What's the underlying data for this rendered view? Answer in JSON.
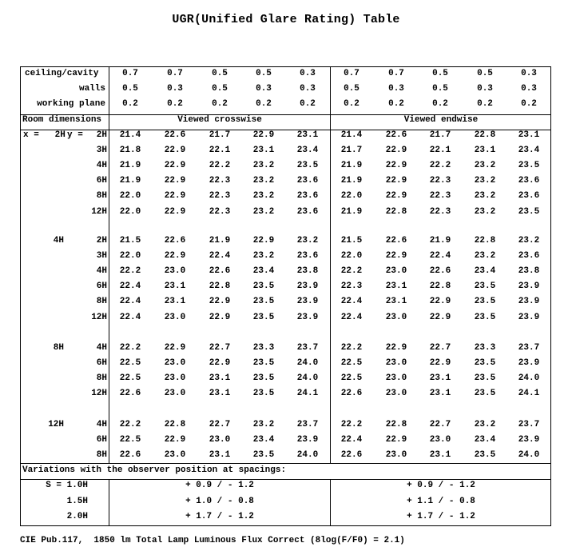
{
  "title": "UGR(Unified Glare Rating) Table",
  "reflectances": {
    "ceiling_label": "ceiling/cavity",
    "walls_label": "walls",
    "plane_label": "working plane",
    "ceiling": [
      "0.7",
      "0.7",
      "0.5",
      "0.5",
      "0.3",
      "0.7",
      "0.7",
      "0.5",
      "0.5",
      "0.3"
    ],
    "walls": [
      "0.5",
      "0.3",
      "0.5",
      "0.3",
      "0.3",
      "0.5",
      "0.3",
      "0.5",
      "0.3",
      "0.3"
    ],
    "plane": [
      "0.2",
      "0.2",
      "0.2",
      "0.2",
      "0.2",
      "0.2",
      "0.2",
      "0.2",
      "0.2",
      "0.2"
    ]
  },
  "header": {
    "room_dimensions": "Room dimensions",
    "crosswise": "Viewed crosswise",
    "endwise": "Viewed endwise"
  },
  "groups": [
    {
      "x_label": "x =   2H",
      "y_prefix": "y =",
      "rows": [
        {
          "y": "2H",
          "values": [
            "21.4",
            "22.6",
            "21.7",
            "22.9",
            "23.1",
            "21.4",
            "22.6",
            "21.7",
            "22.8",
            "23.1"
          ]
        },
        {
          "y": "3H",
          "values": [
            "21.8",
            "22.9",
            "22.1",
            "23.1",
            "23.4",
            "21.7",
            "22.9",
            "22.1",
            "23.1",
            "23.4"
          ]
        },
        {
          "y": "4H",
          "values": [
            "21.9",
            "22.9",
            "22.2",
            "23.2",
            "23.5",
            "21.9",
            "22.9",
            "22.2",
            "23.2",
            "23.5"
          ]
        },
        {
          "y": "6H",
          "values": [
            "21.9",
            "22.9",
            "22.3",
            "23.2",
            "23.6",
            "21.9",
            "22.9",
            "22.3",
            "23.2",
            "23.6"
          ]
        },
        {
          "y": "8H",
          "values": [
            "22.0",
            "22.9",
            "22.3",
            "23.2",
            "23.6",
            "22.0",
            "22.9",
            "22.3",
            "23.2",
            "23.6"
          ]
        },
        {
          "y": "12H",
          "values": [
            "22.0",
            "22.9",
            "22.3",
            "23.2",
            "23.6",
            "21.9",
            "22.8",
            "22.3",
            "23.2",
            "23.5"
          ]
        }
      ]
    },
    {
      "x_label": "4H",
      "y_prefix": "",
      "rows": [
        {
          "y": "2H",
          "values": [
            "21.5",
            "22.6",
            "21.9",
            "22.9",
            "23.2",
            "21.5",
            "22.6",
            "21.9",
            "22.8",
            "23.2"
          ]
        },
        {
          "y": "3H",
          "values": [
            "22.0",
            "22.9",
            "22.4",
            "23.2",
            "23.6",
            "22.0",
            "22.9",
            "22.4",
            "23.2",
            "23.6"
          ]
        },
        {
          "y": "4H",
          "values": [
            "22.2",
            "23.0",
            "22.6",
            "23.4",
            "23.8",
            "22.2",
            "23.0",
            "22.6",
            "23.4",
            "23.8"
          ]
        },
        {
          "y": "6H",
          "values": [
            "22.4",
            "23.1",
            "22.8",
            "23.5",
            "23.9",
            "22.3",
            "23.1",
            "22.8",
            "23.5",
            "23.9"
          ]
        },
        {
          "y": "8H",
          "values": [
            "22.4",
            "23.1",
            "22.9",
            "23.5",
            "23.9",
            "22.4",
            "23.1",
            "22.9",
            "23.5",
            "23.9"
          ]
        },
        {
          "y": "12H",
          "values": [
            "22.4",
            "23.0",
            "22.9",
            "23.5",
            "23.9",
            "22.4",
            "23.0",
            "22.9",
            "23.5",
            "23.9"
          ]
        }
      ]
    },
    {
      "x_label": "8H",
      "y_prefix": "",
      "rows": [
        {
          "y": "4H",
          "values": [
            "22.2",
            "22.9",
            "22.7",
            "23.3",
            "23.7",
            "22.2",
            "22.9",
            "22.7",
            "23.3",
            "23.7"
          ]
        },
        {
          "y": "6H",
          "values": [
            "22.5",
            "23.0",
            "22.9",
            "23.5",
            "24.0",
            "22.5",
            "23.0",
            "22.9",
            "23.5",
            "23.9"
          ]
        },
        {
          "y": "8H",
          "values": [
            "22.5",
            "23.0",
            "23.1",
            "23.5",
            "24.0",
            "22.5",
            "23.0",
            "23.1",
            "23.5",
            "24.0"
          ]
        },
        {
          "y": "12H",
          "values": [
            "22.6",
            "23.0",
            "23.1",
            "23.5",
            "24.1",
            "22.6",
            "23.0",
            "23.1",
            "23.5",
            "24.1"
          ]
        }
      ]
    },
    {
      "x_label": "12H",
      "y_prefix": "",
      "rows": [
        {
          "y": "4H",
          "values": [
            "22.2",
            "22.8",
            "22.7",
            "23.2",
            "23.7",
            "22.2",
            "22.8",
            "22.7",
            "23.2",
            "23.7"
          ]
        },
        {
          "y": "6H",
          "values": [
            "22.5",
            "22.9",
            "23.0",
            "23.4",
            "23.9",
            "22.4",
            "22.9",
            "23.0",
            "23.4",
            "23.9"
          ]
        },
        {
          "y": "8H",
          "values": [
            "22.6",
            "23.0",
            "23.1",
            "23.5",
            "24.0",
            "22.6",
            "23.0",
            "23.1",
            "23.5",
            "24.0"
          ]
        }
      ]
    }
  ],
  "variations": {
    "label": "Variations with the observer position at spacings:",
    "rows": [
      {
        "spacing": "S = 1.0H",
        "crosswise": "+ 0.9 / - 1.2",
        "endwise": "+ 0.9 / - 1.2"
      },
      {
        "spacing": "1.5H",
        "crosswise": "+ 1.0 / - 0.8",
        "endwise": "+ 1.1 / - 0.8"
      },
      {
        "spacing": "2.0H",
        "crosswise": "+ 1.7 / - 1.2",
        "endwise": "+ 1.7 / - 1.2"
      }
    ]
  },
  "footer": "CIE Pub.117,  1850 lm Total Lamp Luminous Flux Correct (8log(F/F0) = 2.1)"
}
